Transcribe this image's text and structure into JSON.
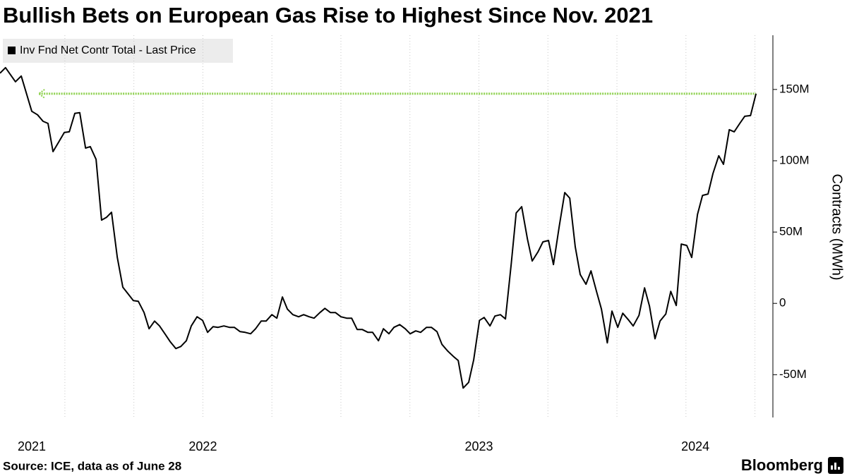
{
  "chart_data": {
    "type": "line",
    "title": "Bullish Bets on European Gas Rise to Highest Since Nov. 2021",
    "ylabel": "Contracts (MWh)",
    "source": "Source: ICE, data as of June 28",
    "brand": "Bloomberg",
    "x": [
      2021.765,
      2021.785,
      2021.821,
      2021.842,
      2021.88,
      2021.901,
      2021.921,
      2021.939,
      2021.957,
      2021.977,
      2021.998,
      2022.016,
      2022.036,
      2022.054,
      2022.075,
      2022.092,
      2022.113,
      2022.133,
      2022.151,
      2022.169,
      2022.19,
      2022.21,
      2022.228,
      2022.248,
      2022.266,
      2022.287,
      2022.305,
      2022.325,
      2022.343,
      2022.364,
      2022.381,
      2022.402,
      2022.42,
      2022.44,
      2022.458,
      2022.479,
      2022.499,
      2022.517,
      2022.537,
      2022.555,
      2022.576,
      2022.596,
      2022.614,
      2022.635,
      2022.653,
      2022.673,
      2022.691,
      2022.711,
      2022.729,
      2022.75,
      2022.768,
      2022.788,
      2022.806,
      2022.826,
      2022.847,
      2022.865,
      2022.885,
      2022.903,
      2022.924,
      2022.942,
      2022.962,
      2022.98,
      2023.0,
      2023.021,
      2023.039,
      2023.059,
      2023.077,
      2023.098,
      2023.115,
      2023.136,
      2023.154,
      2023.174,
      2023.192,
      2023.213,
      2023.233,
      2023.251,
      2023.271,
      2023.289,
      2023.31,
      2023.328,
      2023.348,
      2023.366,
      2023.386,
      2023.407,
      2023.425,
      2023.443,
      2023.463,
      2023.481,
      2023.502,
      2023.519,
      2023.54,
      2023.558,
      2023.578,
      2023.596,
      2023.617,
      2023.635,
      2023.655,
      2023.676,
      2023.693,
      2023.714,
      2023.732,
      2023.752,
      2023.77,
      2023.791,
      2023.811,
      2023.829,
      2023.849,
      2023.867,
      2023.888,
      2023.906,
      2023.926,
      2023.944,
      2023.965,
      2023.982,
      2024.003,
      2024.021,
      2024.041,
      2024.059,
      2024.08,
      2024.1,
      2024.118,
      2024.138,
      2024.156,
      2024.177,
      2024.195,
      2024.215,
      2024.233,
      2024.253,
      2024.271,
      2024.292,
      2024.31,
      2024.33,
      2024.348,
      2024.369,
      2024.386,
      2024.407,
      2024.425,
      2024.445,
      2024.463,
      2024.484,
      2024.504
    ],
    "series": [
      {
        "name": "Inv Fnd Net Contr Total - Last Price",
        "color": "#000000",
        "values": [
          161.4,
          165.3,
          155.4,
          159.4,
          134.7,
          132.2,
          127.7,
          126.2,
          106.4,
          112.9,
          119.8,
          120.3,
          133.2,
          133.7,
          108.9,
          109.9,
          101.0,
          58.4,
          60.4,
          63.9,
          32.2,
          11.4,
          6.9,
          2.0,
          1.5,
          -6.4,
          -17.8,
          -12.4,
          -15.8,
          -21.8,
          -26.7,
          -31.7,
          -30.2,
          -26.2,
          -15.8,
          -9.4,
          -11.9,
          -20.3,
          -16.3,
          -16.8,
          -15.8,
          -16.8,
          -16.8,
          -19.8,
          -20.3,
          -21.3,
          -17.8,
          -12.4,
          -12.4,
          -7.9,
          -10.4,
          4.5,
          -4.0,
          -7.9,
          -9.4,
          -7.9,
          -9.4,
          -10.4,
          -6.4,
          -3.5,
          -6.4,
          -6.4,
          -9.4,
          -10.4,
          -10.4,
          -18.3,
          -18.3,
          -20.3,
          -20.3,
          -26.2,
          -17.8,
          -21.3,
          -16.8,
          -14.9,
          -17.8,
          -21.3,
          -19.3,
          -20.3,
          -16.8,
          -16.8,
          -19.8,
          -28.7,
          -33.2,
          -37.1,
          -40.1,
          -59.4,
          -55.4,
          -39.6,
          -11.9,
          -9.9,
          -15.8,
          -8.9,
          -7.9,
          -10.9,
          27.7,
          63.4,
          67.8,
          45.0,
          29.7,
          36.1,
          43.1,
          44.1,
          27.2,
          54.0,
          77.7,
          73.8,
          39.6,
          20.3,
          13.4,
          22.8,
          8.4,
          -4.0,
          -27.7,
          -5.4,
          -16.8,
          -6.9,
          -11.4,
          -15.8,
          -8.4,
          10.9,
          -2.0,
          -24.8,
          -12.4,
          -7.4,
          8.4,
          -1.5,
          41.6,
          40.6,
          32.2,
          62.4,
          75.7,
          76.7,
          91.1,
          103.5,
          97.5,
          121.8,
          120.3,
          126.2,
          131.2,
          131.7,
          147.0
        ]
      }
    ],
    "reference_line": {
      "value": 147.0,
      "from": 2021.906,
      "color": "#8fd14f"
    },
    "xlim": [
      2021.765,
      2024.565
    ],
    "ylim": [
      -80,
      188
    ],
    "yticks": [
      {
        "value": -50,
        "label": "-50M"
      },
      0,
      {
        "value": 50,
        "label": "50M"
      },
      {
        "value": 100,
        "label": "100M"
      },
      {
        "value": 150,
        "label": "150M"
      }
    ],
    "xticks": [
      {
        "value": 2021.88,
        "label": "2021"
      },
      {
        "value": 2022.5,
        "label": "2022"
      },
      {
        "value": 2023.5,
        "label": "2023"
      },
      {
        "value": 2024.284,
        "label": "2024"
      }
    ],
    "xgrid": [
      2022,
      2022.25,
      2022.5,
      2022.75,
      2023,
      2023.25,
      2023.5,
      2023.75,
      2024,
      2024.25,
      2024.5
    ]
  }
}
